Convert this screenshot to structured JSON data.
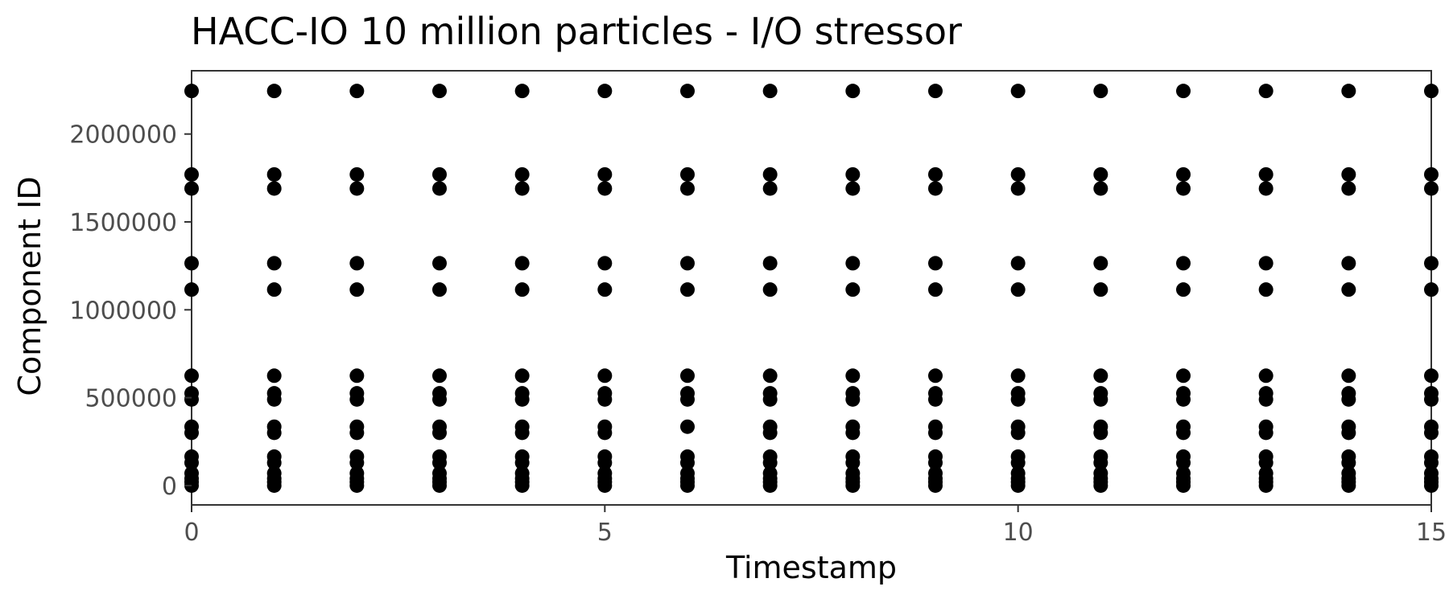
{
  "chart_data": {
    "type": "scatter",
    "title": "HACC-IO 10 million particles - I/O stressor",
    "xlabel": "Timestamp",
    "ylabel": "Component ID",
    "xlim": [
      0,
      15
    ],
    "ylim": [
      -110000,
      2360000
    ],
    "xticks": [
      0,
      5,
      10,
      15
    ],
    "yticks": [
      0,
      500000,
      1000000,
      1500000,
      2000000
    ],
    "grid": false,
    "legend": "none",
    "point_color": "#000000",
    "series": [
      {
        "timestamps": [
          0,
          1,
          2,
          3,
          4,
          5,
          6,
          7,
          8,
          9,
          10,
          11,
          12,
          13,
          14,
          15
        ],
        "component_ids": [
          0,
          20000,
          40000,
          70000,
          130000,
          165000,
          300000,
          335000,
          490000,
          525000,
          625000,
          1115000,
          1265000,
          1690000,
          1770000,
          2245000
        ],
        "missing": [
          {
            "x": 6,
            "y": 300000
          }
        ]
      }
    ]
  }
}
